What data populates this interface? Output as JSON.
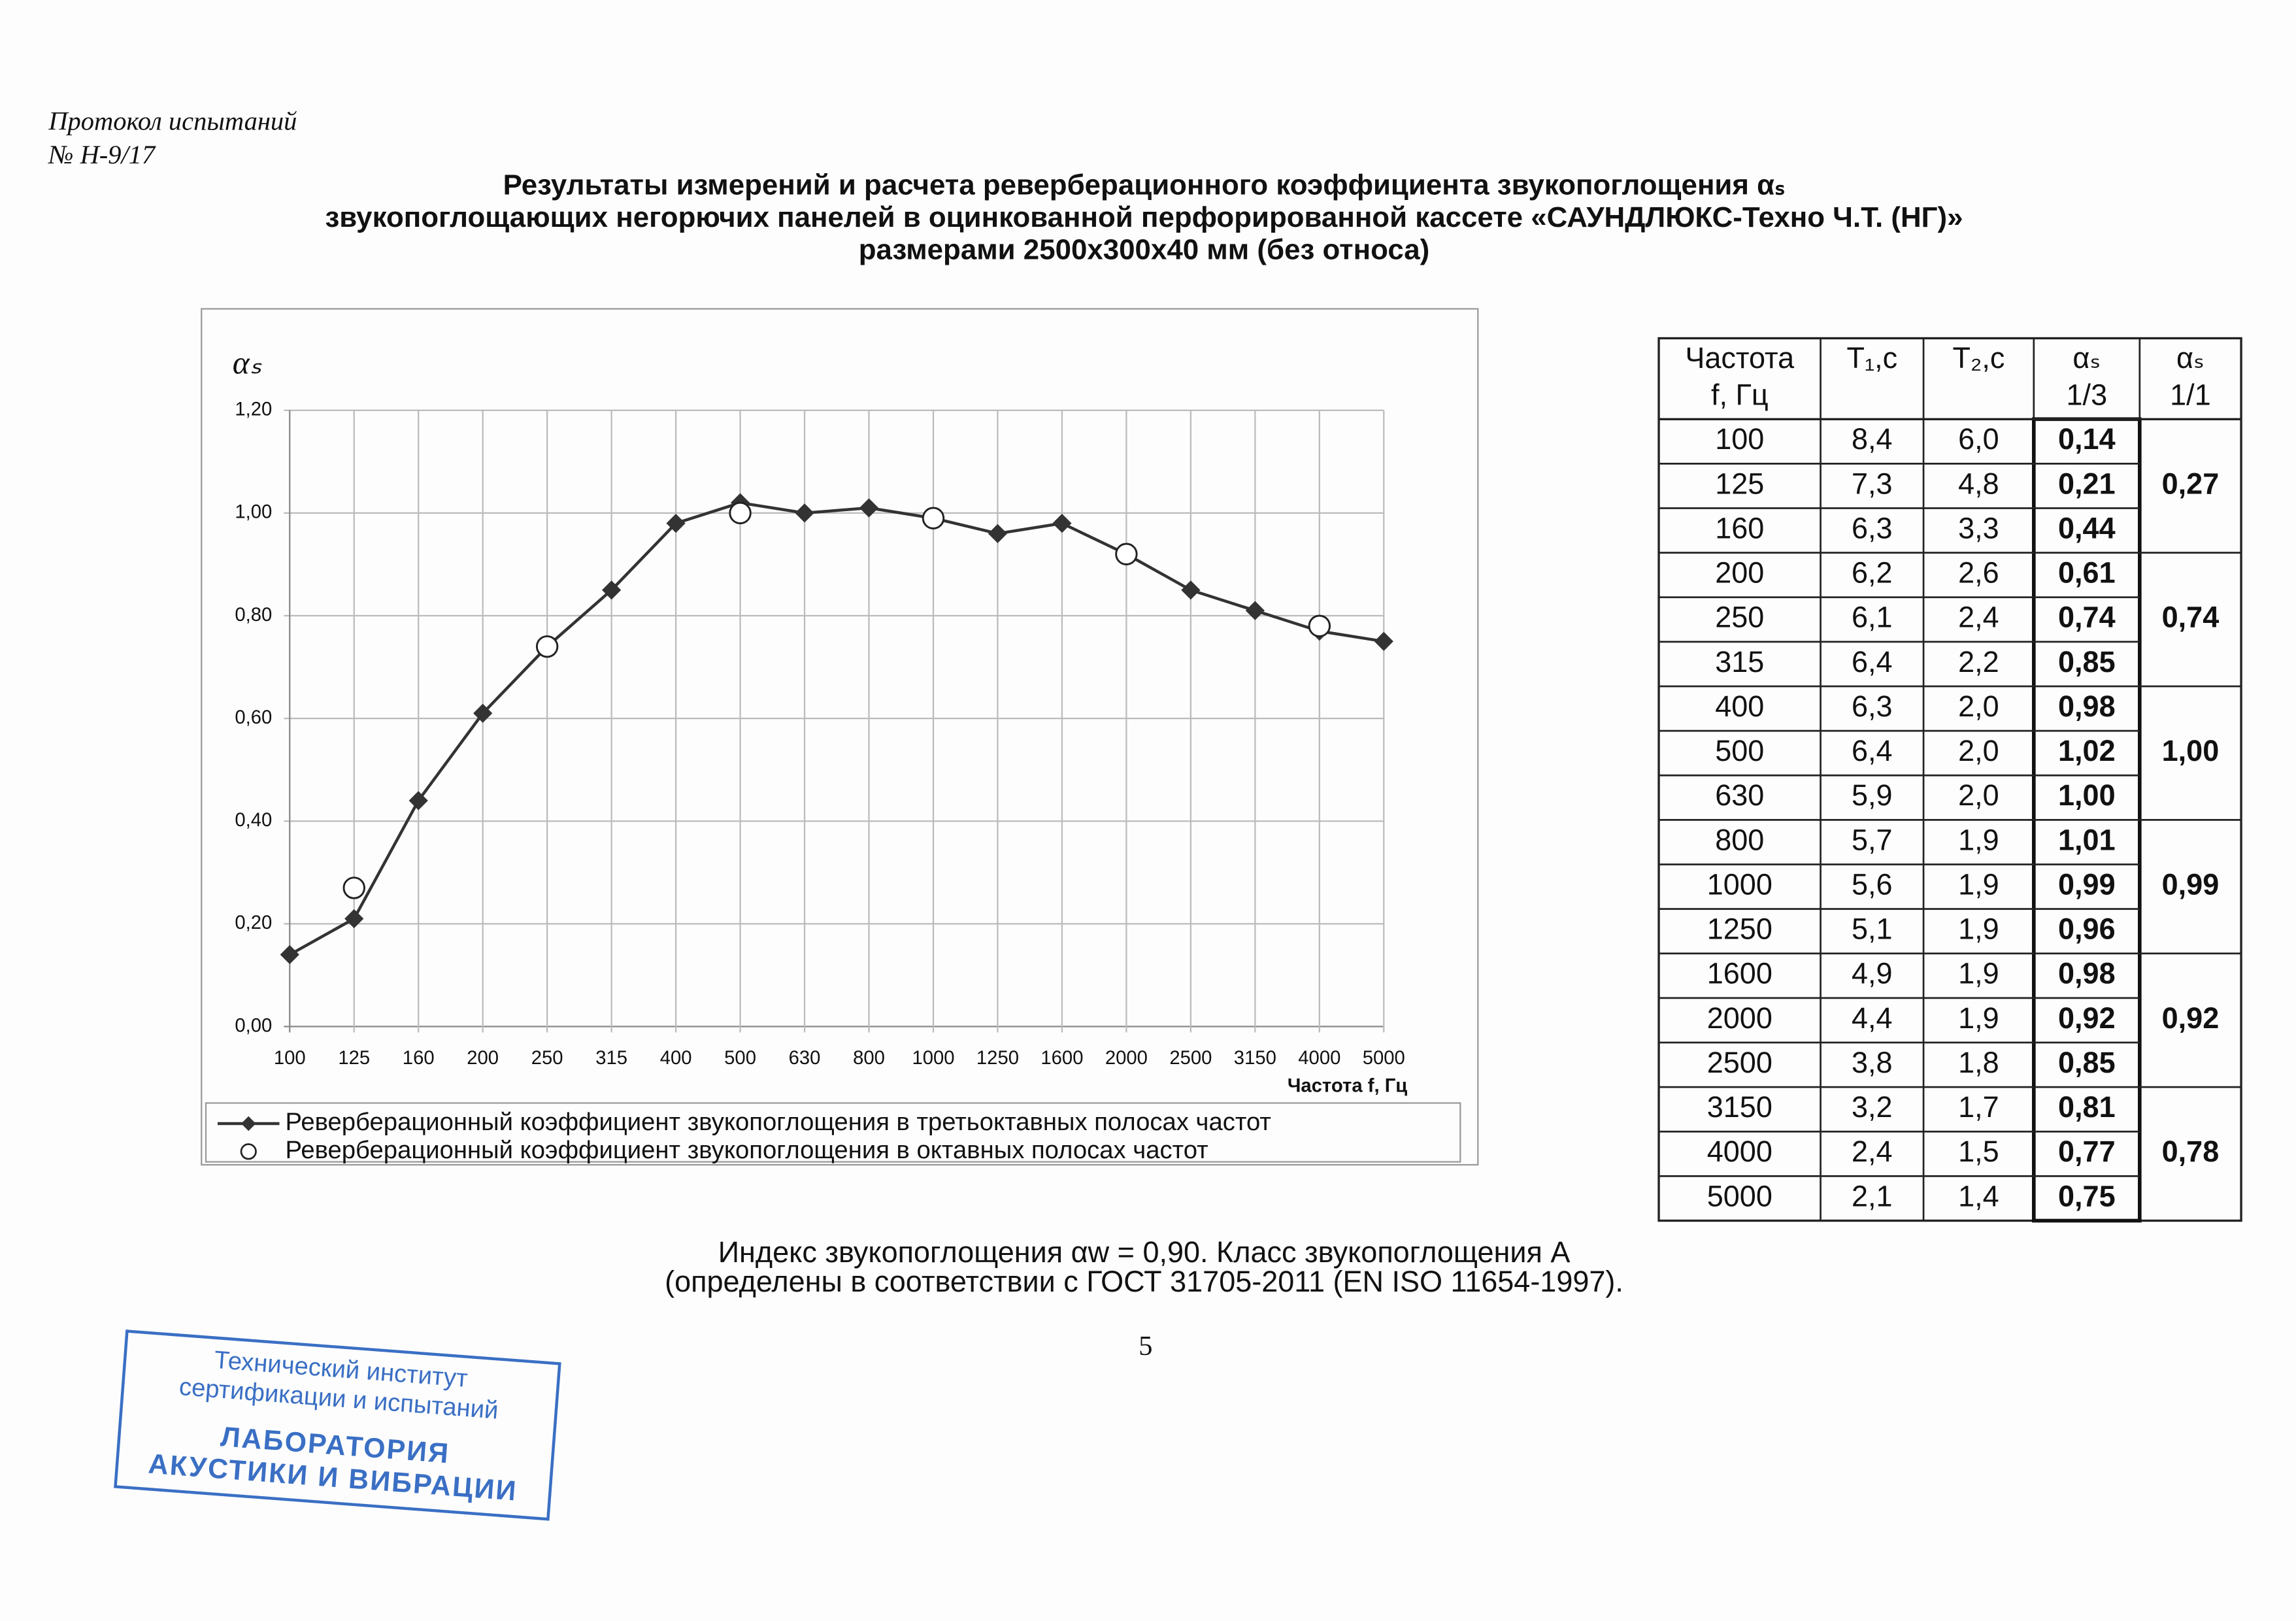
{
  "header": {
    "lines": [
      "Протокол испытаний",
      "№ Н-9/17"
    ]
  },
  "title": {
    "lines": [
      "Результаты измерений и расчета реверберационного коэффициента звукопоглощения  αₛ",
      "звукопоглощающих негорючих  панелей в оцинкованной перфорированной кассете  «САУНДЛЮКС-Техно Ч.Т. (НГ)»",
      "размерами 2500х300х40 мм (без относа)"
    ]
  },
  "chart_data": {
    "type": "line",
    "ylabel": "αₛ",
    "xlabel": "Частота f, Гц",
    "categories": [
      "100",
      "125",
      "160",
      "200",
      "250",
      "315",
      "400",
      "500",
      "630",
      "800",
      "1000",
      "1250",
      "1600",
      "2000",
      "2500",
      "3150",
      "4000",
      "5000"
    ],
    "series": [
      {
        "name": "Реверберационный коэффициент звукопоглощения в третьоктавных полосах частот",
        "color": "#333333",
        "marker": "diamond",
        "line": true,
        "values": [
          0.14,
          0.21,
          0.44,
          0.61,
          0.74,
          0.85,
          0.98,
          1.02,
          1.0,
          1.01,
          0.99,
          0.96,
          0.98,
          0.92,
          0.85,
          0.81,
          0.77,
          0.75
        ]
      },
      {
        "name": "Реверберационный коэффициент звукопоглощения в октавных полосах частот",
        "color": "#222222",
        "marker": "circle",
        "line": false,
        "values": [
          null,
          0.27,
          null,
          null,
          0.74,
          null,
          null,
          1.0,
          null,
          null,
          0.99,
          null,
          null,
          0.92,
          null,
          null,
          0.78,
          null
        ]
      }
    ],
    "ylim": [
      0,
      1.2
    ],
    "yticks": [
      {
        "value": 0,
        "label": "0,00"
      },
      {
        "value": 0.2,
        "label": "0,20"
      },
      {
        "value": 0.4,
        "label": "0,40"
      },
      {
        "value": 0.6,
        "label": "0,60"
      },
      {
        "value": 0.8,
        "label": "0,80"
      },
      {
        "value": 1.0,
        "label": "1,00"
      },
      {
        "value": 1.2,
        "label": "1,20"
      }
    ],
    "grid": true,
    "legend": "bottom"
  },
  "table": {
    "header": [
      [
        "Частота",
        "f, Гц"
      ],
      [
        "T₁,c"
      ],
      [
        "T₂,c"
      ],
      [
        "αₛ",
        "1/3"
      ],
      [
        "αₛ",
        "1/1"
      ]
    ],
    "rows": [
      [
        "100",
        "8,4",
        "6,0",
        "0,14"
      ],
      [
        "125",
        "7,3",
        "4,8",
        "0,21"
      ],
      [
        "160",
        "6,3",
        "3,3",
        "0,44"
      ],
      [
        "200",
        "6,2",
        "2,6",
        "0,61"
      ],
      [
        "250",
        "6,1",
        "2,4",
        "0,74"
      ],
      [
        "315",
        "6,4",
        "2,2",
        "0,85"
      ],
      [
        "400",
        "6,3",
        "2,0",
        "0,98"
      ],
      [
        "500",
        "6,4",
        "2,0",
        "1,02"
      ],
      [
        "630",
        "5,9",
        "2,0",
        "1,00"
      ],
      [
        "800",
        "5,7",
        "1,9",
        "1,01"
      ],
      [
        "1000",
        "5,6",
        "1,9",
        "0,99"
      ],
      [
        "1250",
        "5,1",
        "1,9",
        "0,96"
      ],
      [
        "1600",
        "4,9",
        "1,9",
        "0,98"
      ],
      [
        "2000",
        "4,4",
        "1,9",
        "0,92"
      ],
      [
        "2500",
        "3,8",
        "1,8",
        "0,85"
      ],
      [
        "3150",
        "3,2",
        "1,7",
        "0,81"
      ],
      [
        "4000",
        "2,4",
        "1,5",
        "0,77"
      ],
      [
        "5000",
        "2,1",
        "1,4",
        "0,75"
      ]
    ],
    "octave": [
      "0,27",
      "0,74",
      "1,00",
      "0,99",
      "0,92",
      "0,78"
    ]
  },
  "footer": {
    "lines": [
      "Индекс звукопоглощения αw = 0,90. Класс звукопоглощения  A",
      "(определены в соответствии с ГОСТ 31705-2011 (EN ISO 11654-1997)."
    ]
  },
  "page_number": "5",
  "stamp": {
    "lines": [
      "Технический институт",
      "сертификации и испытаний",
      "ЛАБОРАТОРИЯ",
      "АКУСТИКИ И ВИБРАЦИИ"
    ]
  }
}
